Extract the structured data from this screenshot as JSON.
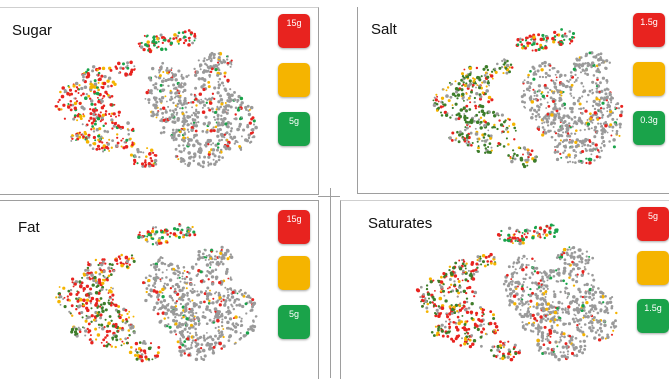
{
  "colors": {
    "high": "#e8231f",
    "medium": "#f5b400",
    "low": "#1aa34a",
    "neutral": "#9a9a9a",
    "dark_green": "#3d7d2a"
  },
  "panels": [
    {
      "title": "Sugar",
      "badges": [
        {
          "level": "high",
          "top": "",
          "value": "15g",
          "bottom": ""
        },
        {
          "level": "medium",
          "top": "",
          "value": "",
          "bottom": ""
        },
        {
          "level": "low",
          "top": "",
          "value": "5g",
          "bottom": ""
        }
      ]
    },
    {
      "title": "Salt",
      "badges": [
        {
          "level": "high",
          "top": "",
          "value": "1.5g",
          "bottom": ""
        },
        {
          "level": "medium",
          "top": "",
          "value": "",
          "bottom": ""
        },
        {
          "level": "low",
          "top": "",
          "value": "0.3g",
          "bottom": ""
        }
      ]
    },
    {
      "title": "Fat",
      "badges": [
        {
          "level": "high",
          "top": "",
          "value": "15g",
          "bottom": ""
        },
        {
          "level": "medium",
          "top": "",
          "value": "",
          "bottom": ""
        },
        {
          "level": "low",
          "top": "",
          "value": "5g",
          "bottom": ""
        }
      ]
    },
    {
      "title": "Saturates",
      "badges": [
        {
          "level": "high",
          "top": "",
          "value": "5g",
          "bottom": ""
        },
        {
          "level": "medium",
          "top": "",
          "value": "",
          "bottom": ""
        },
        {
          "level": "low",
          "top": "",
          "value": "1.5g",
          "bottom": ""
        }
      ]
    }
  ],
  "chart_data": [
    {
      "type": "scatter",
      "title": "Sugar",
      "xlabel": "",
      "ylabel": "",
      "grid": false,
      "legend": "right",
      "series": [
        {
          "name": "15g",
          "color": "#e8231f"
        },
        {
          "name": "5g",
          "color": "#1aa34a"
        }
      ]
    },
    {
      "type": "scatter",
      "title": "Salt",
      "xlabel": "",
      "ylabel": "",
      "grid": false,
      "legend": "right",
      "series": [
        {
          "name": "1.5g",
          "color": "#e8231f"
        },
        {
          "name": "0.3g",
          "color": "#1aa34a"
        }
      ]
    },
    {
      "type": "scatter",
      "title": "Fat",
      "xlabel": "",
      "ylabel": "",
      "grid": false,
      "legend": "right",
      "series": [
        {
          "name": "15g",
          "color": "#e8231f"
        },
        {
          "name": "5g",
          "color": "#1aa34a"
        }
      ]
    },
    {
      "type": "scatter",
      "title": "Saturates",
      "xlabel": "",
      "ylabel": "",
      "grid": false,
      "legend": "right",
      "series": [
        {
          "name": "5g",
          "color": "#e8231f"
        },
        {
          "name": "1.5g",
          "color": "#1aa34a"
        }
      ]
    }
  ]
}
